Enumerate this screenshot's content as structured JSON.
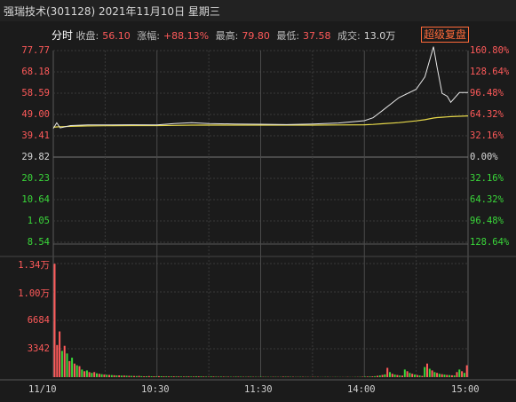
{
  "header": {
    "title": "强瑞技术(301128) 2021年11月10日 星期三"
  },
  "stats": {
    "tab": "分时",
    "close_label": "收盘:",
    "close_value": "56.10",
    "change_label": "涨幅:",
    "change_value": "+88.13%",
    "high_label": "最高:",
    "high_value": "79.80",
    "low_label": "最低:",
    "low_value": "37.58",
    "volume_label": "成交:",
    "volume_value": "13.0万"
  },
  "toolbar": {
    "adjust_button": "超级复盘"
  },
  "axes": {
    "price_ticks": [
      "77.77",
      "68.18",
      "58.59",
      "49.00",
      "39.41",
      "29.82",
      "20.23",
      "10.64",
      "1.05",
      "8.54"
    ],
    "pct_ticks": [
      "160.80%",
      "128.64%",
      "96.48%",
      "64.32%",
      "32.16%",
      "0.00%",
      "32.16%",
      "64.32%",
      "96.48%",
      "128.64%"
    ],
    "volume_ticks": [
      "1.34万",
      "1.00万",
      "6684",
      "3342"
    ],
    "time_ticks": [
      "11/10",
      "10:30",
      "11:30",
      "14:00",
      "15:00"
    ]
  },
  "colors": {
    "up": "#ff5a5a",
    "down": "#3ad83a",
    "price_line": "#e8e8e8",
    "avg_line": "#e6d84a",
    "grid": "#3a3a3a",
    "accent": "#ff6a3a"
  },
  "chart_data": {
    "type": "line",
    "title": "",
    "prev_close": 29.82,
    "ylim": [
      -21.1,
      77.77
    ],
    "x": [
      "09:30",
      "09:32",
      "09:34",
      "09:40",
      "09:50",
      "10:00",
      "10:15",
      "10:30",
      "10:40",
      "10:50",
      "11:00",
      "11:15",
      "11:30",
      "13:15",
      "13:30",
      "13:45",
      "14:00",
      "14:05",
      "14:10",
      "14:20",
      "14:30",
      "14:35",
      "14:40",
      "14:42",
      "14:45",
      "14:48",
      "14:50",
      "14:55",
      "15:00"
    ],
    "series": [
      {
        "values": [
          37.6,
          40.5,
          37.9,
          39.1,
          39.4,
          39.4,
          39.5,
          39.4,
          40.1,
          40.6,
          40.1,
          39.9,
          39.8,
          39.6,
          39.9,
          40.4,
          41.6,
          43.1,
          46.5,
          53.5,
          57.8,
          64.2,
          79.8,
          69.5,
          55.7,
          54.2,
          51.1,
          56.1,
          56.1
        ]
      },
      {
        "values": [
          38.2,
          38.4,
          38.5,
          38.7,
          38.9,
          39.0,
          39.1,
          39.1,
          39.2,
          39.3,
          39.3,
          39.3,
          39.3,
          39.3,
          39.3,
          39.4,
          39.5,
          39.7,
          40.0,
          40.6,
          41.5,
          42.1,
          43.0,
          43.2,
          43.4,
          43.6,
          43.7,
          43.9,
          44.1
        ]
      }
    ],
    "volume": {
      "ylim": [
        0,
        13420
      ],
      "values": [
        13400,
        3800,
        5400,
        3100,
        3700,
        2800,
        1900,
        2300,
        1600,
        1400,
        1300,
        900,
        700,
        800,
        600,
        500,
        600,
        450,
        400,
        350,
        300,
        280,
        260,
        240,
        220,
        200,
        210,
        180,
        190,
        170,
        160,
        150,
        140,
        130,
        150,
        120,
        110,
        100,
        130,
        110,
        100,
        90,
        120,
        100,
        95,
        90,
        85,
        80,
        90,
        85,
        80,
        75,
        70,
        85,
        80,
        75,
        70,
        90,
        85,
        80,
        70,
        60,
        55,
        80,
        70,
        60,
        50,
        65,
        60,
        55,
        50,
        45,
        40,
        60,
        55,
        50,
        45,
        40,
        55,
        50,
        45,
        40,
        35,
        50,
        45,
        40,
        35,
        30,
        45,
        40,
        35,
        30,
        60,
        55,
        50,
        45,
        40,
        35,
        30,
        45,
        40,
        35,
        30,
        25,
        40,
        35,
        30,
        25,
        20,
        35,
        30,
        25,
        20,
        30,
        25,
        20,
        25,
        20,
        30,
        25,
        20,
        30,
        35,
        40,
        50,
        60,
        70,
        80,
        90,
        120,
        160,
        200,
        260,
        320,
        1100,
        600,
        400,
        300,
        250,
        200,
        180,
        900,
        700,
        500,
        400,
        300,
        250,
        200,
        150,
        1200,
        1600,
        1000,
        800,
        600,
        500,
        400,
        350,
        300,
        260,
        240,
        220,
        200,
        600,
        900,
        700,
        500,
        1400
      ],
      "up": [
        true,
        true,
        true,
        false,
        true,
        false,
        true,
        false,
        true,
        false,
        true,
        false,
        true,
        false,
        true,
        false,
        true,
        false,
        true,
        false,
        true,
        false,
        true,
        false,
        true,
        false,
        true,
        false,
        true,
        false,
        true,
        false,
        true,
        false,
        true,
        false,
        true,
        false,
        true,
        false,
        true,
        false,
        true,
        false,
        true,
        false,
        true,
        false,
        true,
        false,
        true,
        false,
        true,
        false,
        true,
        false,
        true,
        false,
        true,
        false,
        true,
        false,
        true,
        false,
        true,
        false,
        true,
        false,
        true,
        false,
        true,
        false,
        true,
        false,
        true,
        false,
        true,
        false,
        true,
        false,
        true,
        false,
        true,
        false,
        true,
        false,
        true,
        false,
        true,
        false,
        true,
        false,
        true,
        false,
        true,
        false,
        true,
        false,
        true,
        false,
        true,
        false,
        true,
        false,
        true,
        false,
        true,
        false,
        true,
        false,
        true,
        false,
        true,
        false,
        true,
        false,
        true,
        false,
        true,
        false,
        true,
        false,
        true,
        false,
        true,
        false,
        true,
        false,
        true,
        false,
        true,
        false,
        true,
        false,
        true,
        false,
        true,
        false,
        true,
        false,
        true,
        false,
        true,
        false,
        true,
        false,
        true,
        false,
        true,
        false,
        true,
        false,
        true,
        false,
        true,
        false,
        true,
        false,
        true,
        false,
        true,
        false,
        true,
        false,
        true,
        false,
        true,
        false,
        true,
        false,
        true,
        false,
        true,
        false
      ]
    }
  }
}
